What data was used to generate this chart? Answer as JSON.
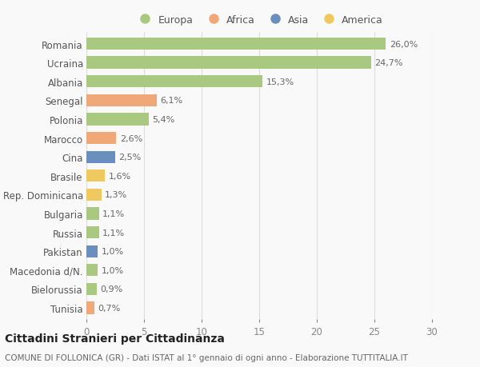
{
  "countries": [
    "Romania",
    "Ucraina",
    "Albania",
    "Senegal",
    "Polonia",
    "Marocco",
    "Cina",
    "Brasile",
    "Rep. Dominicana",
    "Bulgaria",
    "Russia",
    "Pakistan",
    "Macedonia d/N.",
    "Bielorussia",
    "Tunisia"
  ],
  "values": [
    26.0,
    24.7,
    15.3,
    6.1,
    5.4,
    2.6,
    2.5,
    1.6,
    1.3,
    1.1,
    1.1,
    1.0,
    1.0,
    0.9,
    0.7
  ],
  "labels": [
    "26,0%",
    "24,7%",
    "15,3%",
    "6,1%",
    "5,4%",
    "2,6%",
    "2,5%",
    "1,6%",
    "1,3%",
    "1,1%",
    "1,1%",
    "1,0%",
    "1,0%",
    "0,9%",
    "0,7%"
  ],
  "continents": [
    "Europa",
    "Europa",
    "Europa",
    "Africa",
    "Europa",
    "Africa",
    "Asia",
    "America",
    "America",
    "Europa",
    "Europa",
    "Asia",
    "Europa",
    "Europa",
    "Africa"
  ],
  "continent_colors": {
    "Europa": "#a8c97f",
    "Africa": "#f0a878",
    "Asia": "#6a8fbe",
    "America": "#f0c860"
  },
  "legend_order": [
    "Europa",
    "Africa",
    "Asia",
    "America"
  ],
  "xlim": [
    0,
    30
  ],
  "xticks": [
    0,
    5,
    10,
    15,
    20,
    25,
    30
  ],
  "title": "Cittadini Stranieri per Cittadinanza",
  "subtitle": "COMUNE DI FOLLONICA (GR) - Dati ISTAT al 1° gennaio di ogni anno - Elaborazione TUTTITALIA.IT",
  "background_color": "#f9f9f9",
  "grid_color": "#dddddd",
  "bar_height": 0.65,
  "title_fontsize": 10,
  "subtitle_fontsize": 7.5,
  "label_fontsize": 8,
  "ytick_fontsize": 8.5,
  "xtick_fontsize": 8.5
}
